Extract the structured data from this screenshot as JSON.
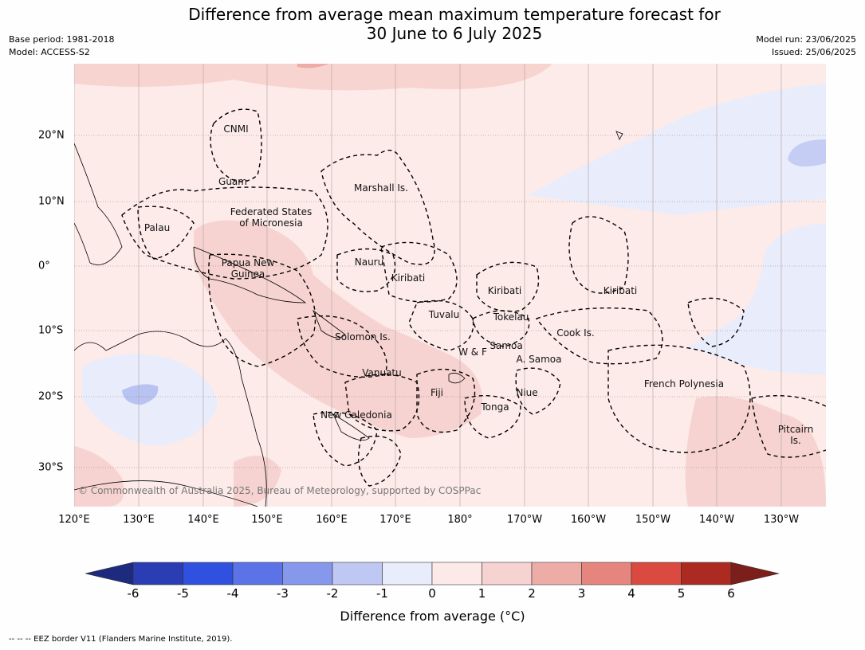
{
  "title_line1": "Difference from average mean maximum temperature forecast for",
  "title_line2": "30 June to 6 July 2025",
  "meta_left": [
    "Base period: 1981-2018",
    "Model: ACCESS-S2"
  ],
  "meta_right": [
    "Model run: 23/06/2025",
    "Issued: 25/06/2025"
  ],
  "longitude_labels": [
    "120°E",
    "130°E",
    "140°E",
    "150°E",
    "160°E",
    "170°E",
    "180°",
    "170°W",
    "160°W",
    "150°W",
    "140°W",
    "130°W"
  ],
  "latitude_labels": [
    "20°N",
    "10°N",
    "0°",
    "10°S",
    "20°S",
    "30°S"
  ],
  "place_names": [
    {
      "id": "cnmi",
      "lines": [
        "CNMI"
      ]
    },
    {
      "id": "guam",
      "lines": [
        "Guam"
      ]
    },
    {
      "id": "marshall",
      "lines": [
        "Marshall Is."
      ]
    },
    {
      "id": "fsm",
      "lines": [
        "Federated States",
        "of Micronesia"
      ]
    },
    {
      "id": "palau",
      "lines": [
        "Palau"
      ]
    },
    {
      "id": "png",
      "lines": [
        "Papua New",
        "Guinea"
      ]
    },
    {
      "id": "nauru",
      "lines": [
        "Nauru"
      ]
    },
    {
      "id": "kiribati-w",
      "lines": [
        "Kiribati"
      ]
    },
    {
      "id": "kiribati-c",
      "lines": [
        "Kiribati"
      ]
    },
    {
      "id": "kiribati-e",
      "lines": [
        "Kiribati"
      ]
    },
    {
      "id": "tuvalu",
      "lines": [
        "Tuvalu"
      ]
    },
    {
      "id": "tokelau",
      "lines": [
        "Tokelau"
      ]
    },
    {
      "id": "cook",
      "lines": [
        "Cook Is."
      ]
    },
    {
      "id": "solomon",
      "lines": [
        "Solomon Is."
      ]
    },
    {
      "id": "samoa",
      "lines": [
        "Samoa"
      ]
    },
    {
      "id": "wf",
      "lines": [
        "W & F"
      ]
    },
    {
      "id": "asamoa",
      "lines": [
        "A. Samoa"
      ]
    },
    {
      "id": "vanuatu",
      "lines": [
        "Vanuatu"
      ]
    },
    {
      "id": "fiji",
      "lines": [
        "Fiji"
      ]
    },
    {
      "id": "niue",
      "lines": [
        "Niue"
      ]
    },
    {
      "id": "tonga",
      "lines": [
        "Tonga"
      ]
    },
    {
      "id": "frpoly",
      "lines": [
        "French Polynesia"
      ]
    },
    {
      "id": "newcal",
      "lines": [
        "New Caledonia"
      ]
    },
    {
      "id": "pitcairn",
      "lines": [
        "Pitcairn",
        "Is."
      ]
    }
  ],
  "copyright": "© Commonwealth of Australia 2025, Bureau of Meteorology, supported by COSPPac",
  "colorbar": {
    "ticks": [
      "-6",
      "-5",
      "-4",
      "-3",
      "-2",
      "-1",
      "0",
      "1",
      "2",
      "3",
      "4",
      "5",
      "6"
    ],
    "colors": [
      "#1e2a7e",
      "#2a3db3",
      "#3050e0",
      "#5b73e6",
      "#8698ec",
      "#bfc8f3",
      "#e8ecfb",
      "#fceae8",
      "#f6d3d0",
      "#eeaca7",
      "#e6857e",
      "#db4a40",
      "#ac2a22",
      "#7c1e1a"
    ],
    "label": "Difference from average (°C)"
  },
  "footnote": "--  --  -- EEZ border V11 (Flanders Marine Institute, 2019)."
}
